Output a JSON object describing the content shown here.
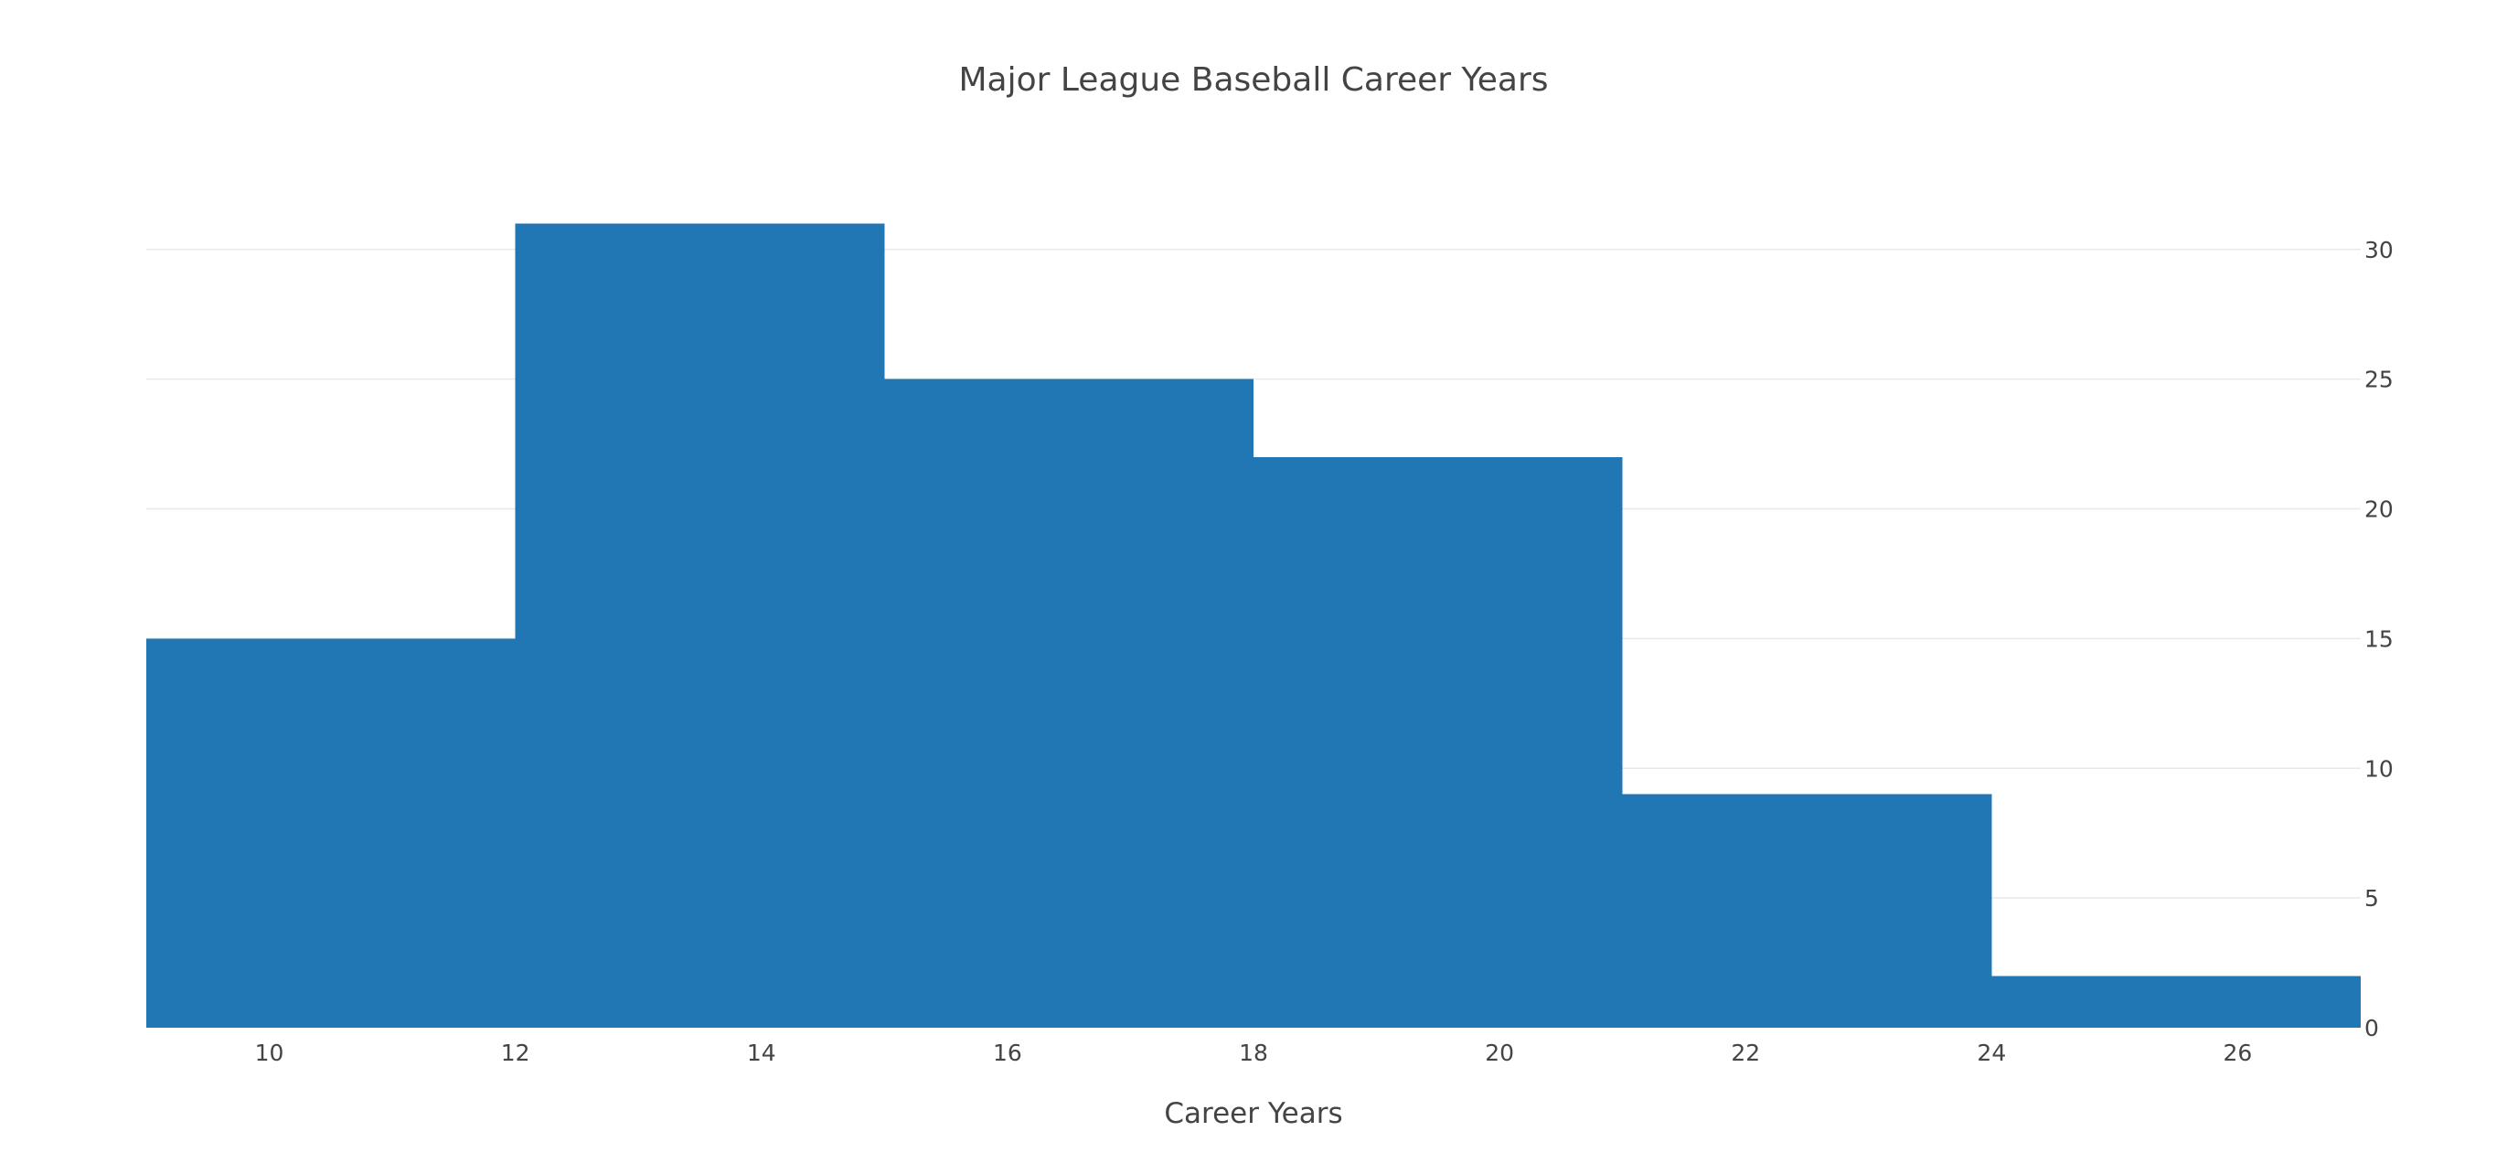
{
  "chart_data": {
    "type": "histogram",
    "title": "Major League Baseball Career Years",
    "xlabel": "Career Years",
    "ylabel": "",
    "xlim": [
      9,
      27
    ],
    "ylim": [
      0,
      32
    ],
    "x_ticks": [
      10,
      12,
      14,
      16,
      18,
      20,
      22,
      24,
      26
    ],
    "y_ticks": [
      0,
      5,
      10,
      15,
      20,
      25,
      30
    ],
    "y_axis_side": "right",
    "grid": "horizontal",
    "bar_color": "#2077b4",
    "bins": [
      {
        "start": 9,
        "end": 12,
        "count": 15
      },
      {
        "start": 12,
        "end": 15,
        "count": 31
      },
      {
        "start": 15,
        "end": 18,
        "count": 25
      },
      {
        "start": 18,
        "end": 21,
        "count": 22
      },
      {
        "start": 21,
        "end": 24,
        "count": 9
      },
      {
        "start": 24,
        "end": 27,
        "count": 2
      }
    ]
  }
}
